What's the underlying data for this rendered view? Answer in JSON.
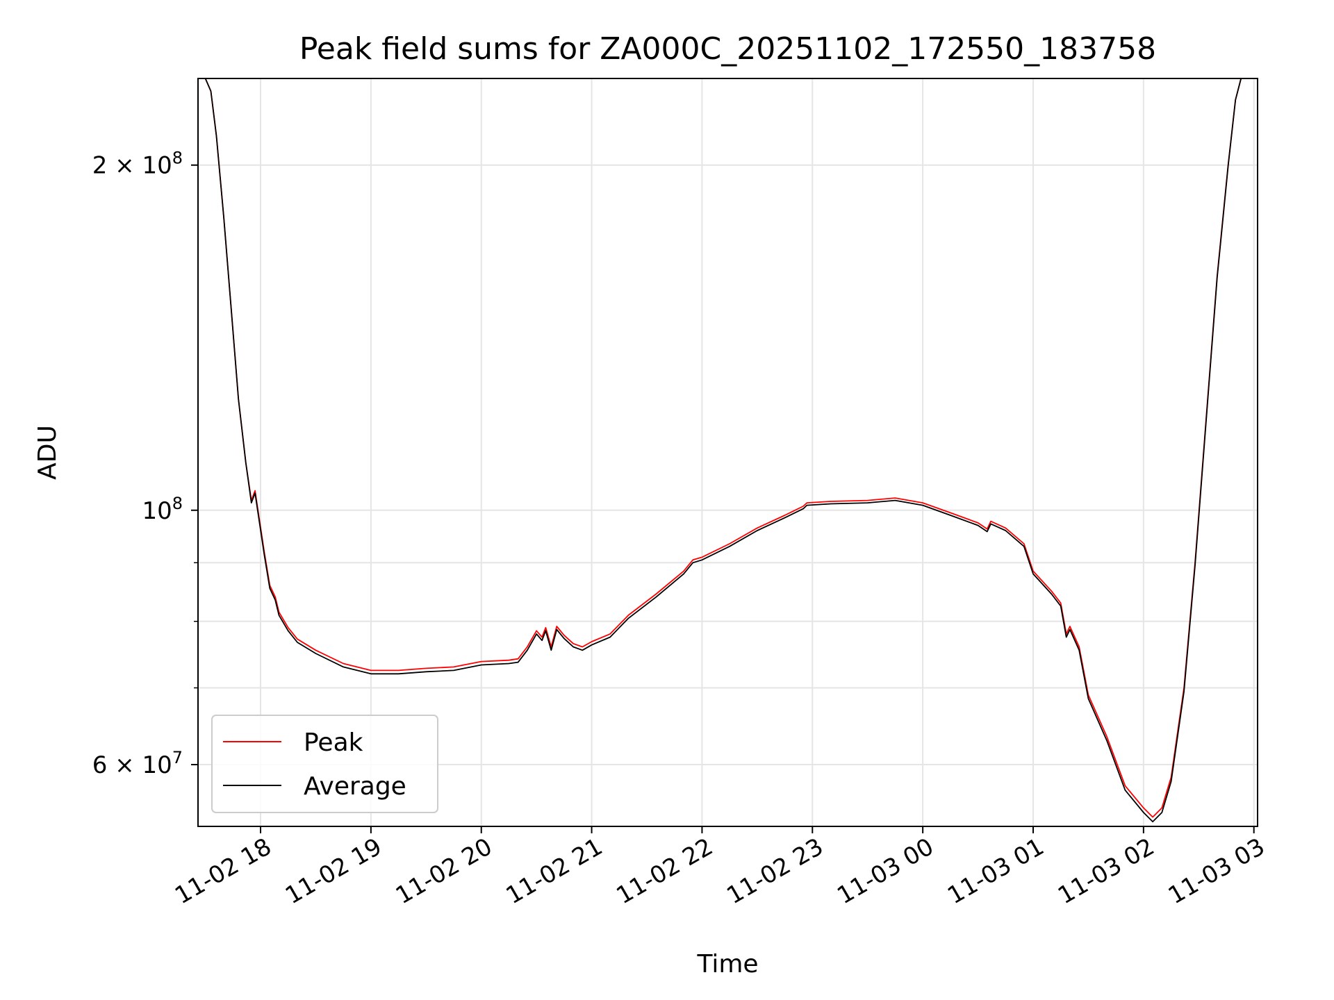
{
  "chart_data": {
    "type": "line",
    "title": "Peak field sums for ZA000C_20251102_172550_183758",
    "xlabel": "Time",
    "ylabel": "ADU",
    "x_start": "2025-11-02T17:26",
    "x_end": "2025-11-03T03:02",
    "xlim": [
      "2025-11-02T17:26",
      "2025-11-03T03:02"
    ],
    "x_ticks": [
      {
        "value": "2025-11-02T18:00",
        "label": "11-02 18"
      },
      {
        "value": "2025-11-02T19:00",
        "label": "11-02 19"
      },
      {
        "value": "2025-11-02T20:00",
        "label": "11-02 20"
      },
      {
        "value": "2025-11-02T21:00",
        "label": "11-02 21"
      },
      {
        "value": "2025-11-02T22:00",
        "label": "11-02 22"
      },
      {
        "value": "2025-11-02T23:00",
        "label": "11-02 23"
      },
      {
        "value": "2025-11-03T00:00",
        "label": "11-03 00"
      },
      {
        "value": "2025-11-03T01:00",
        "label": "11-03 01"
      },
      {
        "value": "2025-11-03T02:00",
        "label": "11-03 02"
      },
      {
        "value": "2025-11-03T03:00",
        "label": "11-03 03"
      }
    ],
    "yscale": "log",
    "ylim": [
      53000000,
      238000000
    ],
    "y_ticks": [
      {
        "value": 200000000,
        "base": "2 × 10",
        "exp": "8"
      },
      {
        "value": 100000000,
        "base": "10",
        "exp": "8"
      },
      {
        "value": 60000000,
        "base": "6 × 10",
        "exp": "7"
      }
    ],
    "y_minor_ticks": [
      70000000,
      80000000,
      90000000
    ],
    "grid": true,
    "legend": {
      "position": "lower-left"
    },
    "series": [
      {
        "name": "Peak",
        "color": "#ff0000",
        "points": [
          [
            "2025-11-02T17:26",
            238000000
          ],
          [
            "2025-11-02T17:30",
            238000000
          ],
          [
            "2025-11-02T17:33",
            232000000
          ],
          [
            "2025-11-02T17:36",
            212000000
          ],
          [
            "2025-11-02T17:40",
            180000000
          ],
          [
            "2025-11-02T17:44",
            150000000
          ],
          [
            "2025-11-02T17:48",
            125000000
          ],
          [
            "2025-11-02T17:52",
            110000000
          ],
          [
            "2025-11-02T17:55",
            102000000
          ],
          [
            "2025-11-02T17:57",
            104000000
          ],
          [
            "2025-11-02T17:59",
            99000000
          ],
          [
            "2025-11-02T18:02",
            92000000
          ],
          [
            "2025-11-02T18:05",
            86000000
          ],
          [
            "2025-11-02T18:08",
            84000000
          ],
          [
            "2025-11-02T18:10",
            81500000
          ],
          [
            "2025-11-02T18:15",
            79000000
          ],
          [
            "2025-11-02T18:20",
            77200000
          ],
          [
            "2025-11-02T18:30",
            75500000
          ],
          [
            "2025-11-02T18:45",
            73500000
          ],
          [
            "2025-11-02T19:00",
            72500000
          ],
          [
            "2025-11-02T19:15",
            72500000
          ],
          [
            "2025-11-02T19:30",
            72800000
          ],
          [
            "2025-11-02T19:45",
            73000000
          ],
          [
            "2025-11-02T20:00",
            73800000
          ],
          [
            "2025-11-02T20:15",
            74000000
          ],
          [
            "2025-11-02T20:20",
            74200000
          ],
          [
            "2025-11-02T20:25",
            76000000
          ],
          [
            "2025-11-02T20:30",
            78500000
          ],
          [
            "2025-11-02T20:33",
            77500000
          ],
          [
            "2025-11-02T20:35",
            79000000
          ],
          [
            "2025-11-02T20:38",
            76000000
          ],
          [
            "2025-11-02T20:41",
            79200000
          ],
          [
            "2025-11-02T20:45",
            77800000
          ],
          [
            "2025-11-02T20:50",
            76500000
          ],
          [
            "2025-11-02T20:55",
            76000000
          ],
          [
            "2025-11-02T21:00",
            76800000
          ],
          [
            "2025-11-02T21:10",
            78000000
          ],
          [
            "2025-11-02T21:20",
            81000000
          ],
          [
            "2025-11-02T21:35",
            84500000
          ],
          [
            "2025-11-02T21:50",
            88500000
          ],
          [
            "2025-11-02T21:55",
            90500000
          ],
          [
            "2025-11-02T22:00",
            91000000
          ],
          [
            "2025-11-02T22:15",
            93500000
          ],
          [
            "2025-11-02T22:30",
            96500000
          ],
          [
            "2025-11-02T22:45",
            99000000
          ],
          [
            "2025-11-02T22:55",
            100800000
          ],
          [
            "2025-11-02T22:57",
            101500000
          ],
          [
            "2025-11-02T23:10",
            101800000
          ],
          [
            "2025-11-02T23:30",
            102000000
          ],
          [
            "2025-11-02T23:45",
            102500000
          ],
          [
            "2025-11-03T00:00",
            101500000
          ],
          [
            "2025-11-03T00:15",
            99500000
          ],
          [
            "2025-11-03T00:30",
            97500000
          ],
          [
            "2025-11-03T00:35",
            96300000
          ],
          [
            "2025-11-03T00:37",
            97800000
          ],
          [
            "2025-11-03T00:45",
            96500000
          ],
          [
            "2025-11-03T00:55",
            93500000
          ],
          [
            "2025-11-03T01:00",
            88500000
          ],
          [
            "2025-11-03T01:10",
            85000000
          ],
          [
            "2025-11-03T01:15",
            83000000
          ],
          [
            "2025-11-03T01:18",
            78000000
          ],
          [
            "2025-11-03T01:20",
            79200000
          ],
          [
            "2025-11-03T01:25",
            76000000
          ],
          [
            "2025-11-03T01:30",
            69000000
          ],
          [
            "2025-11-03T01:40",
            63500000
          ],
          [
            "2025-11-03T01:50",
            57500000
          ],
          [
            "2025-11-03T02:00",
            55000000
          ],
          [
            "2025-11-03T02:05",
            54000000
          ],
          [
            "2025-11-03T02:10",
            55000000
          ],
          [
            "2025-11-03T02:15",
            58500000
          ],
          [
            "2025-11-03T02:22",
            70000000
          ],
          [
            "2025-11-03T02:28",
            90000000
          ],
          [
            "2025-11-03T02:34",
            120000000
          ],
          [
            "2025-11-03T02:40",
            160000000
          ],
          [
            "2025-11-03T02:46",
            200000000
          ],
          [
            "2025-11-03T02:50",
            228000000
          ],
          [
            "2025-11-03T02:53",
            238000000
          ],
          [
            "2025-11-03T03:02",
            238000000
          ]
        ]
      },
      {
        "name": "Average",
        "color": "#000000",
        "points": [
          [
            "2025-11-02T17:26",
            238000000
          ],
          [
            "2025-11-02T17:30",
            238000000
          ],
          [
            "2025-11-02T17:33",
            232000000
          ],
          [
            "2025-11-02T17:36",
            212000000
          ],
          [
            "2025-11-02T17:40",
            180000000
          ],
          [
            "2025-11-02T17:44",
            150000000
          ],
          [
            "2025-11-02T17:48",
            125000000
          ],
          [
            "2025-11-02T17:52",
            110000000
          ],
          [
            "2025-11-02T17:55",
            101500000
          ],
          [
            "2025-11-02T17:57",
            103500000
          ],
          [
            "2025-11-02T17:59",
            98500000
          ],
          [
            "2025-11-02T18:02",
            91500000
          ],
          [
            "2025-11-02T18:05",
            85500000
          ],
          [
            "2025-11-02T18:08",
            83500000
          ],
          [
            "2025-11-02T18:10",
            81000000
          ],
          [
            "2025-11-02T18:15",
            78500000
          ],
          [
            "2025-11-02T18:20",
            76700000
          ],
          [
            "2025-11-02T18:30",
            75000000
          ],
          [
            "2025-11-02T18:45",
            73000000
          ],
          [
            "2025-11-02T19:00",
            72000000
          ],
          [
            "2025-11-02T19:15",
            72000000
          ],
          [
            "2025-11-02T19:30",
            72300000
          ],
          [
            "2025-11-02T19:45",
            72500000
          ],
          [
            "2025-11-02T20:00",
            73300000
          ],
          [
            "2025-11-02T20:15",
            73500000
          ],
          [
            "2025-11-02T20:20",
            73700000
          ],
          [
            "2025-11-02T20:25",
            75500000
          ],
          [
            "2025-11-02T20:30",
            78000000
          ],
          [
            "2025-11-02T20:33",
            77000000
          ],
          [
            "2025-11-02T20:35",
            78500000
          ],
          [
            "2025-11-02T20:38",
            75500000
          ],
          [
            "2025-11-02T20:41",
            78700000
          ],
          [
            "2025-11-02T20:45",
            77300000
          ],
          [
            "2025-11-02T20:50",
            76000000
          ],
          [
            "2025-11-02T20:55",
            75500000
          ],
          [
            "2025-11-02T21:00",
            76300000
          ],
          [
            "2025-11-02T21:10",
            77500000
          ],
          [
            "2025-11-02T21:20",
            80500000
          ],
          [
            "2025-11-02T21:35",
            84000000
          ],
          [
            "2025-11-02T21:50",
            88000000
          ],
          [
            "2025-11-02T21:55",
            90000000
          ],
          [
            "2025-11-02T22:00",
            90500000
          ],
          [
            "2025-11-02T22:15",
            93000000
          ],
          [
            "2025-11-02T22:30",
            96000000
          ],
          [
            "2025-11-02T22:45",
            98500000
          ],
          [
            "2025-11-02T22:55",
            100300000
          ],
          [
            "2025-11-02T22:57",
            101000000
          ],
          [
            "2025-11-02T23:10",
            101300000
          ],
          [
            "2025-11-02T23:30",
            101500000
          ],
          [
            "2025-11-02T23:45",
            102000000
          ],
          [
            "2025-11-03T00:00",
            101000000
          ],
          [
            "2025-11-03T00:15",
            99000000
          ],
          [
            "2025-11-03T00:30",
            97000000
          ],
          [
            "2025-11-03T00:35",
            95800000
          ],
          [
            "2025-11-03T00:37",
            97300000
          ],
          [
            "2025-11-03T00:45",
            96000000
          ],
          [
            "2025-11-03T00:55",
            93000000
          ],
          [
            "2025-11-03T01:00",
            88000000
          ],
          [
            "2025-11-03T01:10",
            84500000
          ],
          [
            "2025-11-03T01:15",
            82500000
          ],
          [
            "2025-11-03T01:18",
            77500000
          ],
          [
            "2025-11-03T01:20",
            78700000
          ],
          [
            "2025-11-03T01:25",
            75500000
          ],
          [
            "2025-11-03T01:30",
            68500000
          ],
          [
            "2025-11-03T01:40",
            63000000
          ],
          [
            "2025-11-03T01:50",
            57000000
          ],
          [
            "2025-11-03T02:00",
            54500000
          ],
          [
            "2025-11-03T02:05",
            53500000
          ],
          [
            "2025-11-03T02:10",
            54500000
          ],
          [
            "2025-11-03T02:15",
            58000000
          ],
          [
            "2025-11-03T02:22",
            69500000
          ],
          [
            "2025-11-03T02:28",
            89500000
          ],
          [
            "2025-11-03T02:34",
            119500000
          ],
          [
            "2025-11-03T02:40",
            159500000
          ],
          [
            "2025-11-03T02:46",
            199500000
          ],
          [
            "2025-11-03T02:50",
            228000000
          ],
          [
            "2025-11-03T02:53",
            238000000
          ],
          [
            "2025-11-03T03:02",
            238000000
          ]
        ]
      }
    ]
  }
}
